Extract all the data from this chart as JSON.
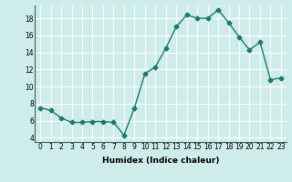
{
  "x": [
    0,
    1,
    2,
    3,
    4,
    5,
    6,
    7,
    8,
    9,
    10,
    11,
    12,
    13,
    14,
    15,
    16,
    17,
    18,
    19,
    20,
    21,
    22,
    23
  ],
  "y": [
    7.5,
    7.2,
    6.3,
    5.8,
    5.8,
    5.9,
    5.9,
    5.8,
    4.3,
    7.5,
    11.5,
    12.3,
    14.5,
    17.0,
    18.4,
    18.0,
    18.0,
    19.0,
    17.5,
    15.8,
    14.3,
    15.2,
    10.8,
    11.0
  ],
  "xlabel": "Humidex (Indice chaleur)",
  "ylabel": "",
  "xlim": [
    -0.5,
    23.5
  ],
  "ylim": [
    3.5,
    19.5
  ],
  "yticks": [
    4,
    6,
    8,
    10,
    12,
    14,
    16,
    18
  ],
  "xticks": [
    0,
    1,
    2,
    3,
    4,
    5,
    6,
    7,
    8,
    9,
    10,
    11,
    12,
    13,
    14,
    15,
    16,
    17,
    18,
    19,
    20,
    21,
    22,
    23
  ],
  "line_color": "#1a7a6e",
  "marker": "D",
  "markersize": 2.5,
  "linewidth": 1.0,
  "bg_color": "#ceecea",
  "grid_color": "#ffffff",
  "label_fontsize": 6.5,
  "tick_fontsize": 5.5
}
